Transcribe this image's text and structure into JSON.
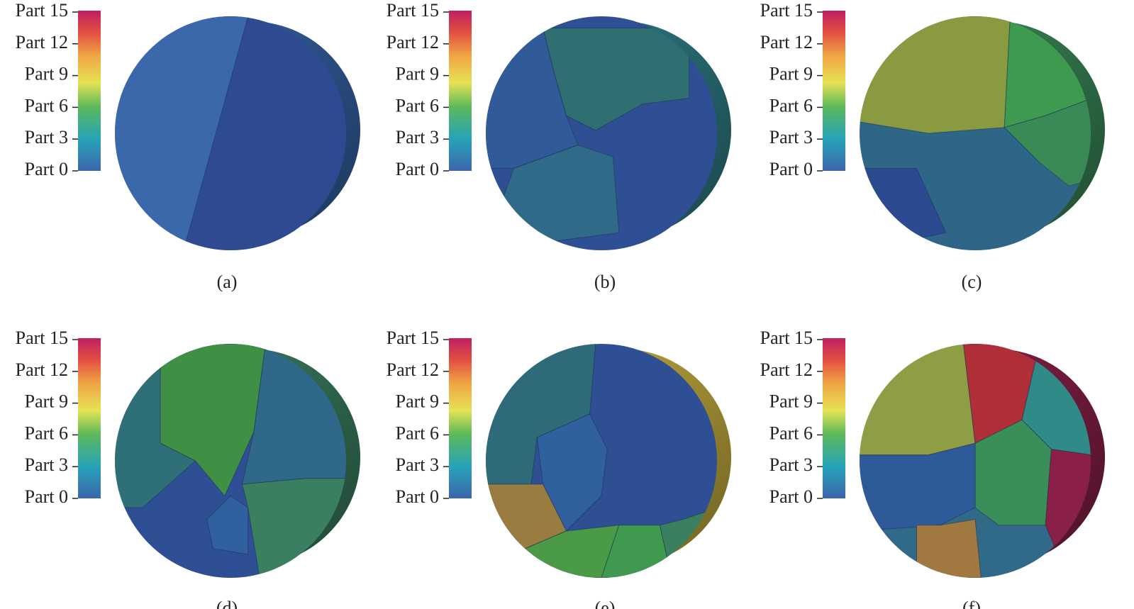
{
  "panels": [
    {
      "caption": "(a)",
      "colorbar_labels": [
        "Part 15",
        "Part 12",
        "Part 9",
        "Part 6",
        "Part 3",
        "Part 0"
      ]
    },
    {
      "caption": "(b)",
      "colorbar_labels": [
        "Part 15",
        "Part 12",
        "Part 9",
        "Part 6",
        "Part 3",
        "Part 0"
      ]
    },
    {
      "caption": "(c)",
      "colorbar_labels": [
        "Part 15",
        "Part 12",
        "Part 9",
        "Part 6",
        "Part 3",
        "Part 0"
      ]
    },
    {
      "caption": "(d)",
      "colorbar_labels": [
        "Part 15",
        "Part 12",
        "Part 9",
        "Part 6",
        "Part 3",
        "Part 0"
      ]
    },
    {
      "caption": "(e)",
      "colorbar_labels": [
        "Part 15",
        "Part 12",
        "Part 9",
        "Part 6",
        "Part 3",
        "Part 0"
      ]
    },
    {
      "caption": "(f)",
      "colorbar_labels": [
        "Part 15",
        "Part 12",
        "Part 9",
        "Part 6",
        "Part 3",
        "Part 0"
      ]
    }
  ]
}
